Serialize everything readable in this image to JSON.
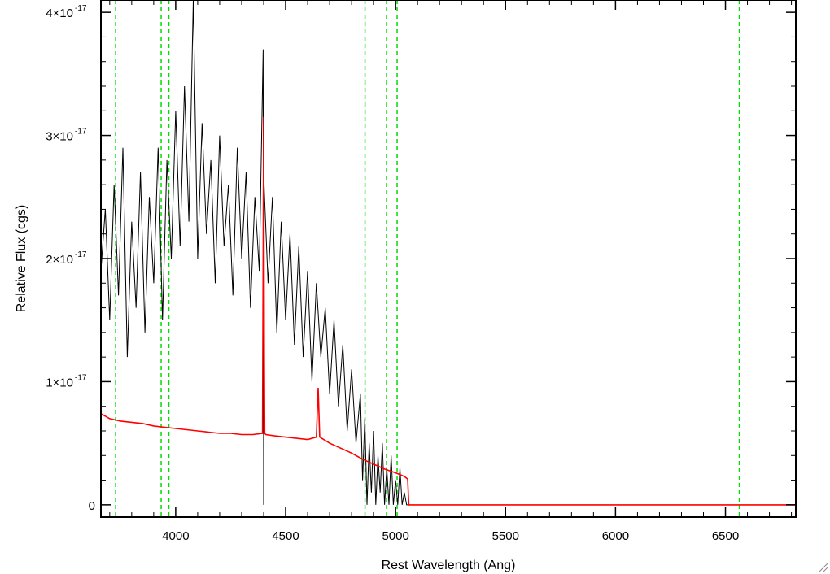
{
  "chart_data": {
    "type": "line",
    "title": "",
    "xlabel": "Rest Wavelength (Ang)",
    "ylabel": "Relative Flux (cgs)",
    "xlim": [
      3660,
      6820
    ],
    "ylim": [
      -1e-18,
      4.1e-17
    ],
    "x_ticks": [
      {
        "value": 4000,
        "label": "4000"
      },
      {
        "value": 4500,
        "label": "4500"
      },
      {
        "value": 5000,
        "label": "5000"
      },
      {
        "value": 5500,
        "label": "5500"
      },
      {
        "value": 6000,
        "label": "6000"
      },
      {
        "value": 6500,
        "label": "6500"
      }
    ],
    "y_ticks": [
      {
        "value": 0,
        "label": "0",
        "exp": ""
      },
      {
        "value": 1e-17,
        "label": "1×10",
        "exp": "-17"
      },
      {
        "value": 2e-17,
        "label": "2×10",
        "exp": "-17"
      },
      {
        "value": 3e-17,
        "label": "3×10",
        "exp": "-17"
      },
      {
        "value": 4e-17,
        "label": "4×10",
        "exp": "-17"
      }
    ],
    "grid": false,
    "colors": {
      "observed": "#000000",
      "model": "#ff0000",
      "lines": "#00dd00"
    },
    "vertical_lines": [
      3727,
      3934,
      3969,
      4861,
      4959,
      5007,
      6563
    ],
    "series": [
      {
        "color": "#000000",
        "x": [
          3660,
          3680,
          3700,
          3720,
          3740,
          3760,
          3780,
          3800,
          3820,
          3840,
          3860,
          3880,
          3900,
          3920,
          3940,
          3960,
          3980,
          4000,
          4020,
          4040,
          4060,
          4080,
          4100,
          4120,
          4140,
          4160,
          4180,
          4200,
          4220,
          4240,
          4260,
          4280,
          4300,
          4320,
          4340,
          4360,
          4380,
          4398,
          4400,
          4402,
          4420,
          4440,
          4460,
          4480,
          4500,
          4520,
          4540,
          4560,
          4580,
          4600,
          4620,
          4640,
          4660,
          4680,
          4700,
          4720,
          4740,
          4760,
          4780,
          4800,
          4820,
          4840,
          4850,
          4860,
          4870,
          4880,
          4890,
          4900,
          4910,
          4920,
          4930,
          4940,
          4950,
          4960,
          4970,
          4980,
          4990,
          5000,
          5010,
          5020,
          5030,
          5040,
          5050,
          5060
        ],
        "y": [
          1.9e-17,
          2.4e-17,
          1.5e-17,
          2.6e-17,
          1.7e-17,
          2.9e-17,
          1.2e-17,
          2.3e-17,
          1.6e-17,
          2.7e-17,
          1.4e-17,
          2.5e-17,
          1.8e-17,
          2.9e-17,
          1.5e-17,
          2.8e-17,
          2e-17,
          3.2e-17,
          2.1e-17,
          3.4e-17,
          2.3e-17,
          4.1e-17,
          2e-17,
          3.1e-17,
          2.2e-17,
          2.8e-17,
          1.8e-17,
          3e-17,
          2.1e-17,
          2.6e-17,
          1.7e-17,
          2.9e-17,
          2e-17,
          2.7e-17,
          1.6e-17,
          2.5e-17,
          1.9e-17,
          3.7e-17,
          0.0,
          2.6e-17,
          1.8e-17,
          2.5e-17,
          1.4e-17,
          2.3e-17,
          1.5e-17,
          2.2e-17,
          1.3e-17,
          2.1e-17,
          1.2e-17,
          1.9e-17,
          1e-17,
          1.8e-17,
          1.2e-17,
          1.6e-17,
          9e-18,
          1.5e-17,
          8e-18,
          1.3e-17,
          6e-18,
          1.1e-17,
          5e-18,
          9e-18,
          2e-18,
          7e-18,
          0.0,
          5e-18,
          1e-18,
          6e-18,
          0.0,
          4e-18,
          1e-18,
          5e-18,
          0.0,
          3e-18,
          0.0,
          4e-18,
          0.0,
          2e-18,
          0.0,
          3e-18,
          0.0,
          1e-18,
          0.0,
          0.0
        ]
      },
      {
        "color": "#ff0000",
        "x": [
          3660,
          3700,
          3750,
          3800,
          3850,
          3900,
          3950,
          4000,
          4050,
          4100,
          4150,
          4200,
          4250,
          4300,
          4350,
          4395,
          4400,
          4403,
          4405,
          4410,
          4450,
          4500,
          4550,
          4600,
          4640,
          4648,
          4655,
          4700,
          4750,
          4800,
          4850,
          4900,
          4950,
          5000,
          5040,
          5055,
          5060,
          5100,
          5500,
          6000,
          6500,
          6820
        ],
        "y": [
          7.4e-18,
          7e-18,
          6.8e-18,
          6.7e-18,
          6.6e-18,
          6.4e-18,
          6.3e-18,
          6.2e-18,
          6.1e-18,
          6e-18,
          5.9e-18,
          5.8e-18,
          5.8e-18,
          5.7e-18,
          5.7e-18,
          5.8e-18,
          3.15e-17,
          1.2e-17,
          5.8e-18,
          5.7e-18,
          5.6e-18,
          5.5e-18,
          5.4e-18,
          5.3e-18,
          5.5e-18,
          9.5e-18,
          5.5e-18,
          5e-18,
          4.6e-18,
          4.2e-18,
          3.7e-18,
          3.3e-18,
          2.9e-18,
          2.6e-18,
          2.3e-18,
          2.1e-18,
          0.0,
          0.0,
          0.0,
          0.0,
          0.0,
          0.0
        ]
      }
    ]
  }
}
